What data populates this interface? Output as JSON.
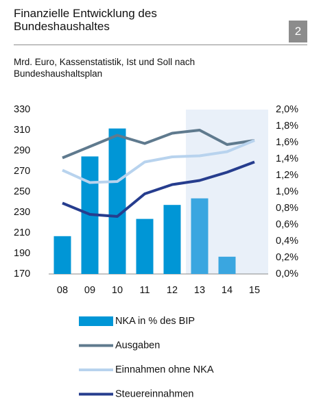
{
  "chart_data": {
    "type": "bar_line",
    "title": "Finanzielle Entwicklung des Bundeshaushaltes",
    "subtitle": "Mrd. Euro, Kassenstatistik, Ist und Soll nach Bundeshaushaltsplan",
    "badge": "2",
    "categories": [
      "08",
      "09",
      "10",
      "11",
      "12",
      "13",
      "14",
      "15"
    ],
    "shade_start": 5,
    "series": [
      {
        "name": "NKA in % des BIP",
        "type": "bar",
        "axis": "y2",
        "color": "#0096d6",
        "colors": [
          "#0096d6",
          "#0096d6",
          "#0096d6",
          "#0096d6",
          "#0096d6",
          "#3aa6e0",
          "#3aa6e0",
          "#3aa6e0"
        ],
        "values": [
          0.46,
          1.43,
          1.77,
          0.67,
          0.84,
          0.92,
          0.21,
          null
        ]
      },
      {
        "name": "Ausgaben",
        "type": "line",
        "color": "#5f7a8e",
        "values": [
          283,
          294,
          305,
          297,
          307,
          310,
          296,
          300
        ]
      },
      {
        "name": "Einnahmen ohne NKA",
        "type": "line",
        "color": "#b8d3ee",
        "values": [
          271,
          259,
          260,
          279,
          284,
          285,
          289,
          300
        ]
      },
      {
        "name": "Steuereinnahmen",
        "type": "line",
        "color": "#263d8e",
        "values": [
          239,
          228,
          226,
          248,
          257,
          261,
          269,
          279
        ]
      }
    ],
    "ylim": [
      170,
      330
    ],
    "yticks": [
      170,
      190,
      210,
      230,
      250,
      270,
      290,
      310,
      330
    ],
    "y2lim": [
      0,
      2
    ],
    "y2ticks": [
      {
        "value": 0,
        "label": "0,0%"
      },
      {
        "value": 0.2,
        "label": "0,2%"
      },
      {
        "value": 0.4,
        "label": "0,4%"
      },
      {
        "value": 0.6,
        "label": "0,6%"
      },
      {
        "value": 0.8,
        "label": "0,8%"
      },
      {
        "value": 1,
        "label": "1,0%"
      },
      {
        "value": 1.2,
        "label": "1,2%"
      },
      {
        "value": 1.4,
        "label": "1,4%"
      },
      {
        "value": 1.6,
        "label": "1,6%"
      },
      {
        "value": 1.8,
        "label": "1,8%"
      },
      {
        "value": 2,
        "label": "2,0%"
      }
    ]
  }
}
